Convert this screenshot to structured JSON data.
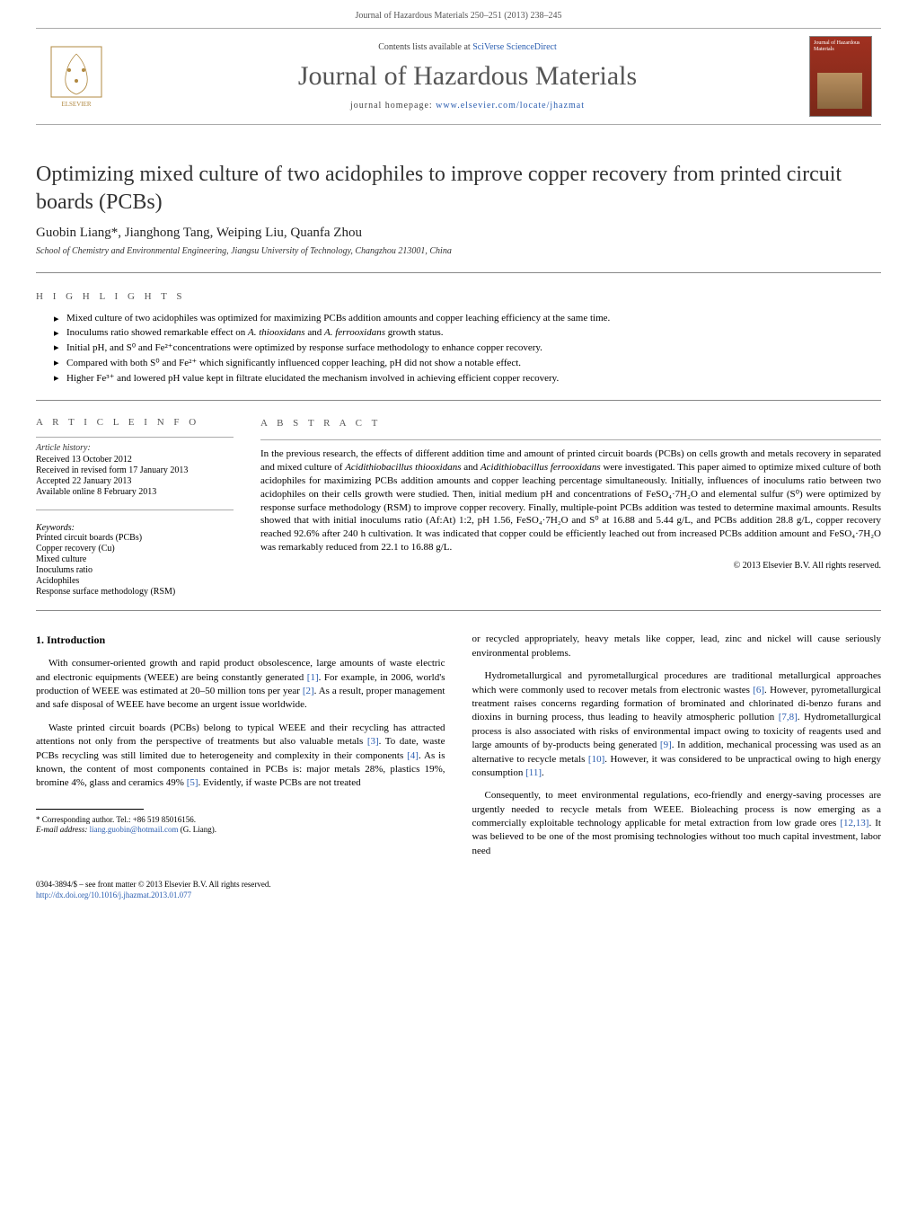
{
  "header": {
    "running_head": "Journal of Hazardous Materials 250–251 (2013) 238–245",
    "contents_text": "Contents lists available at ",
    "contents_link": "SciVerse ScienceDirect",
    "journal_name": "Journal of Hazardous Materials",
    "homepage_label": "journal homepage: ",
    "homepage_url": "www.elsevier.com/locate/jhazmat",
    "cover_title": "Journal of Hazardous Materials"
  },
  "title": "Optimizing mixed culture of two acidophiles to improve copper recovery from printed circuit boards (PCBs)",
  "authors": "Guobin Liang*, Jianghong Tang, Weiping Liu, Quanfa Zhou",
  "affiliation": "School of Chemistry and Environmental Engineering, Jiangsu University of Technology, Changzhou 213001, China",
  "highlights_label": "H I G H L I G H T S",
  "highlights": [
    "Mixed culture of two acidophiles was optimized for maximizing PCBs addition amounts and copper leaching efficiency at the same time.",
    "Inoculums ratio showed remarkable effect on A. thiooxidans and A. ferrooxidans growth status.",
    "Initial pH, and S⁰ and Fe²⁺concentrations were optimized by response surface methodology to enhance copper recovery.",
    "Compared with both S⁰ and Fe²⁺ which significantly influenced copper leaching, pH did not show a notable effect.",
    "Higher Fe³⁺ and lowered pH value kept in filtrate elucidated the mechanism involved in achieving efficient copper recovery."
  ],
  "article_info_label": "A R T I C L E   I N F O",
  "abstract_label": "A B S T R A C T",
  "history": {
    "label": "Article history:",
    "received": "Received 13 October 2012",
    "revised": "Received in revised form 17 January 2013",
    "accepted": "Accepted 22 January 2013",
    "online": "Available online 8 February 2013"
  },
  "keywords_label": "Keywords:",
  "keywords": [
    "Printed circuit boards (PCBs)",
    "Copper recovery (Cu)",
    "Mixed culture",
    "Inoculums ratio",
    "Acidophiles",
    "Response surface methodology (RSM)"
  ],
  "abstract": "In the previous research, the effects of different addition time and amount of printed circuit boards (PCBs) on cells growth and metals recovery in separated and mixed culture of Acidithiobacillus thiooxidans and Acidithiobacillus ferrooxidans were investigated. This paper aimed to optimize mixed culture of both acidophiles for maximizing PCBs addition amounts and copper leaching percentage simultaneously. Initially, influences of inoculums ratio between two acidophiles on their cells growth were studied. Then, initial medium pH and concentrations of FeSO₄·7H₂O and elemental sulfur (S⁰) were optimized by response surface methodology (RSM) to improve copper recovery. Finally, multiple-point PCBs addition was tested to determine maximal amounts. Results showed that with initial inoculums ratio (Af:At) 1:2, pH 1.56, FeSO₄·7H₂O and S⁰ at 16.88 and 5.44 g/L, and PCBs addition 28.8 g/L, copper recovery reached 92.6% after 240 h cultivation. It was indicated that copper could be efficiently leached out from increased PCBs addition amount and FeSO₄·7H₂O was remarkably reduced from 22.1 to 16.88 g/L.",
  "copyright": "© 2013 Elsevier B.V. All rights reserved.",
  "intro_heading": "1. Introduction",
  "body": {
    "col1": {
      "p1": "With consumer-oriented growth and rapid product obsolescence, large amounts of waste electric and electronic equipments (WEEE) are being constantly generated [1]. For example, in 2006, world's production of WEEE was estimated at 20–50 million tons per year [2]. As a result, proper management and safe disposal of WEEE have become an urgent issue worldwide.",
      "p2": "Waste printed circuit boards (PCBs) belong to typical WEEE and their recycling has attracted attentions not only from the perspective of treatments but also valuable metals [3]. To date, waste PCBs recycling was still limited due to heterogeneity and complexity in their components [4]. As is known, the content of most components contained in PCBs is: major metals 28%, plastics 19%, bromine 4%, glass and ceramics 49% [5]. Evidently, if waste PCBs are not treated"
    },
    "col2": {
      "p1": "or recycled appropriately, heavy metals like copper, lead, zinc and nickel will cause seriously environmental problems.",
      "p2": "Hydrometallurgical and pyrometallurgical procedures are traditional metallurgical approaches which were commonly used to recover metals from electronic wastes [6]. However, pyrometallurgical treatment raises concerns regarding formation of brominated and chlorinated di-benzo furans and dioxins in burning process, thus leading to heavily atmospheric pollution [7,8]. Hydrometallurgical process is also associated with risks of environmental impact owing to toxicity of reagents used and large amounts of by-products being generated [9]. In addition, mechanical processing was used as an alternative to recycle metals [10]. However, it was considered to be unpractical owing to high energy consumption [11].",
      "p3": "Consequently, to meet environmental regulations, eco-friendly and energy-saving processes are urgently needed to recycle metals from WEEE. Bioleaching process is now emerging as a commercially exploitable technology applicable for metal extraction from low grade ores [12,13]. It was believed to be one of the most promising technologies without too much capital investment, labor need"
    }
  },
  "footnote": {
    "corr": "* Corresponding author. Tel.: +86 519 85016156.",
    "email_label": "E-mail address: ",
    "email": "liang.guobin@hotmail.com",
    "email_suffix": " (G. Liang)."
  },
  "doi": {
    "line1": "0304-3894/$ – see front matter © 2013 Elsevier B.V. All rights reserved.",
    "url": "http://dx.doi.org/10.1016/j.jhazmat.2013.01.077"
  },
  "colors": {
    "link": "#2a5db0",
    "journal_title": "#555555",
    "text": "#000000",
    "rule": "#888888"
  }
}
